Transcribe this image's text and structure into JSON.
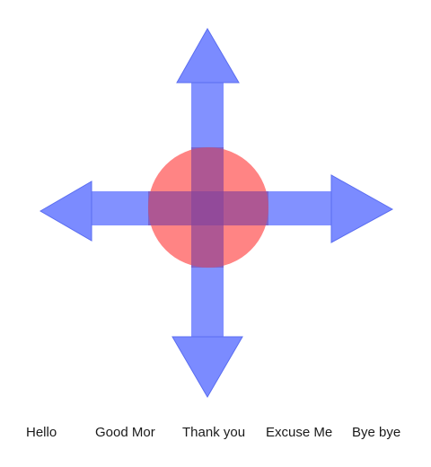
{
  "joystick": {
    "arrow_color": "#7b8bff",
    "arrow_edge_color": "#5a6df0",
    "center_color": "#ff6e6e",
    "directions": [
      "up",
      "down",
      "left",
      "right"
    ],
    "center_icon": "circle-knob-icon"
  },
  "phrases": [
    {
      "label": "Hello"
    },
    {
      "label": "Good Mor"
    },
    {
      "label": "Thank you"
    },
    {
      "label": "Excuse Me"
    },
    {
      "label": "Bye bye"
    }
  ]
}
